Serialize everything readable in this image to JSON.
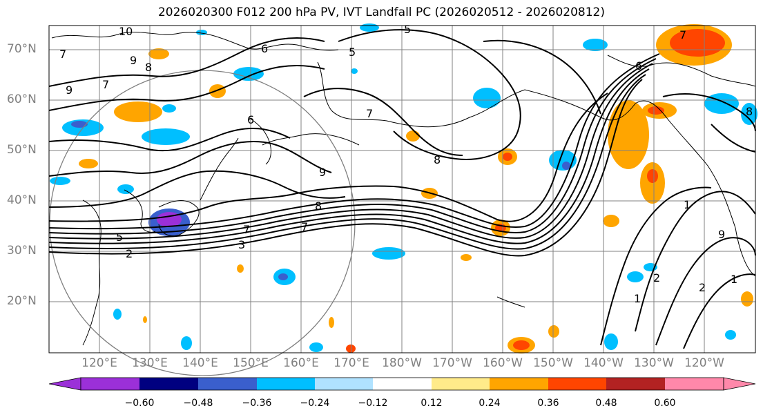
{
  "title": "2026020300 F012 200 hPa PV, IVT Landfall PC (2026020512 - 2026020812)",
  "lat_labels": [
    "70°N",
    "60°N",
    "50°N",
    "40°N",
    "30°N",
    "20°N"
  ],
  "lon_labels": [
    "120°E",
    "130°E",
    "140°E",
    "150°E",
    "160°E",
    "170°E",
    "180°W",
    "170°W",
    "160°W",
    "150°W",
    "140°W",
    "130°W",
    "120°W"
  ],
  "colorbar": {
    "colors": [
      "#9b30d8",
      "#000080",
      "#3a5fcd",
      "#00bfff",
      "#b0e2ff",
      "#ffffff",
      "#ffeb8a",
      "#ffa500",
      "#ff4500",
      "#b22222",
      "#ff88aa"
    ],
    "ticks": [
      "−0.60",
      "−0.48",
      "−0.36",
      "−0.24",
      "−0.12",
      "0.12",
      "0.24",
      "0.36",
      "0.48",
      "0.60"
    ]
  },
  "contour_labels": [
    "10",
    "9",
    "8",
    "9",
    "7",
    "5",
    "6",
    "5",
    "7",
    "8",
    "9",
    "8",
    "7",
    "6",
    "5",
    "2",
    "3",
    "7",
    "7",
    "1",
    "2",
    "1",
    "1",
    "2",
    "6",
    "7",
    "9",
    "8"
  ],
  "map_extent": {
    "lon": [
      110,
      250
    ],
    "lat": [
      10,
      75
    ]
  }
}
